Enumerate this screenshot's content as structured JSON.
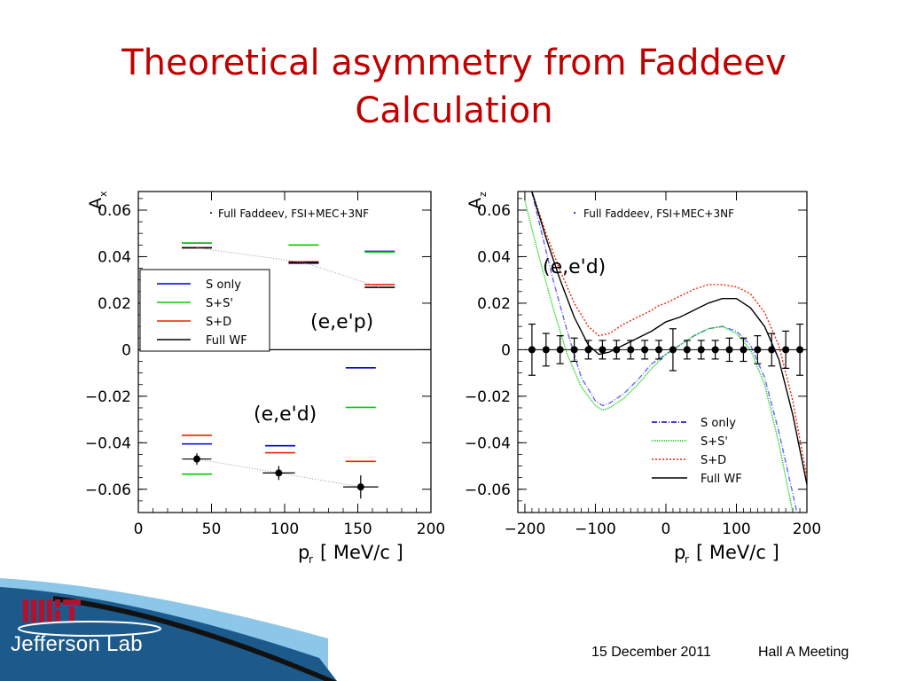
{
  "slide": {
    "title_line1": "Theoretical asymmetry from Faddeev",
    "title_line2": "Calculation",
    "footer_date": "15 December 2011",
    "footer_meeting": "Hall A Meeting",
    "logo_lab": "Jefferson Lab",
    "colors": {
      "title": "#c00000",
      "band_dark": "#1d5a8c",
      "band_light": "#6fb4de"
    }
  },
  "chart_data": [
    {
      "type": "scatter",
      "ylabel": "A",
      "ylabel_sub": "x",
      "xlabel": "p",
      "xlabel_sub": "r",
      "xlabel_unit": "[ MeV/c ]",
      "xlim": [
        0,
        200
      ],
      "ylim": [
        -0.07,
        0.068
      ],
      "xticks": [
        0,
        50,
        100,
        150,
        200
      ],
      "yticks": [
        0.06,
        0.04,
        0.02,
        0,
        -0.02,
        -0.04,
        -0.06
      ],
      "ytick_labels": [
        "0.06",
        "0.04",
        "0.02",
        "0",
        "−0.02",
        "−0.04",
        "−0.06"
      ],
      "header_legend": "Full Faddeev, FSI+MEC+3NF",
      "legend": [
        "S only",
        "S+S'",
        "S+D",
        "Full WF"
      ],
      "legend_colors": [
        "#0000cc",
        "#00cc00",
        "#ee2200",
        "#000000"
      ],
      "annotations": [
        "(e,e'p)",
        "(e,e'd)"
      ],
      "bins": [
        {
          "x": 40,
          "s_only": 0.0458,
          "s_sprime": 0.0458,
          "s_d": 0.0438,
          "full": 0.0438
        },
        {
          "x": 113,
          "s_only": 0.0372,
          "s_sprime": 0.045,
          "s_d": 0.0378,
          "full": 0.0375
        },
        {
          "x": 165,
          "s_only": 0.0423,
          "s_sprime": 0.042,
          "s_d": 0.028,
          "full": 0.0268
        },
        {
          "x": 40,
          "s_only": -0.0405,
          "s_sprime": -0.0535,
          "s_d": -0.0368,
          "full": null
        },
        {
          "x": 97,
          "s_only": -0.0413,
          "s_sprime": null,
          "s_d": -0.0443,
          "full": null
        },
        {
          "x": 152,
          "s_only": -0.0078,
          "s_sprime": -0.0248,
          "s_d": -0.048,
          "full": null
        }
      ],
      "data_points": [
        {
          "x": 40,
          "y": -0.047,
          "yerr": 0.0025,
          "xerr": 10
        },
        {
          "x": 96,
          "y": -0.053,
          "yerr": 0.003,
          "xerr": 11
        },
        {
          "x": 152,
          "y": -0.059,
          "yerr": 0.005,
          "xerr": 12
        }
      ]
    },
    {
      "type": "line",
      "ylabel": "A",
      "ylabel_sub": "z",
      "xlabel": "p",
      "xlabel_sub": "r",
      "xlabel_unit": "[ MeV/c ]",
      "xlim": [
        -210,
        200
      ],
      "ylim": [
        -0.07,
        0.068
      ],
      "xticks": [
        -200,
        -100,
        0,
        100,
        200
      ],
      "xtick_labels": [
        "−200",
        "−100",
        "0",
        "100",
        "200"
      ],
      "yticks": [
        0.06,
        0.04,
        0.02,
        0,
        -0.02,
        -0.04,
        -0.06
      ],
      "ytick_labels": [
        "0.06",
        "0.04",
        "0.02",
        "0",
        "−0.02",
        "−0.04",
        "−0.06"
      ],
      "header_legend": "Full Faddeev, FSI+MEC+3NF",
      "legend": [
        "S only",
        "S+S'",
        "S+D",
        "Full WF"
      ],
      "legend_colors": [
        "#0000cc",
        "#00cc00",
        "#ee2200",
        "#000000"
      ],
      "annotations": [
        "(e,e'd)"
      ],
      "series": [
        {
          "name": "S only",
          "color": "#6666ff",
          "x": [
            -200,
            -180,
            -160,
            -140,
            -120,
            -100,
            -90,
            -80,
            -60,
            -40,
            -20,
            -10,
            0,
            20,
            40,
            60,
            80,
            100,
            120,
            140,
            160,
            180,
            200
          ],
          "y": [
            0.08,
            0.055,
            0.03,
            0.008,
            -0.012,
            -0.022,
            -0.024,
            -0.023,
            -0.019,
            -0.013,
            -0.006,
            -0.004,
            -0.002,
            0.002,
            0.006,
            0.009,
            0.01,
            0.008,
            0.002,
            -0.012,
            -0.035,
            -0.062,
            -0.09
          ]
        },
        {
          "name": "S+S'",
          "color": "#00cc00",
          "x": [
            -200,
            -180,
            -160,
            -140,
            -120,
            -100,
            -90,
            -80,
            -60,
            -40,
            -20,
            -10,
            0,
            20,
            40,
            60,
            80,
            100,
            120,
            140,
            160,
            180,
            200
          ],
          "y": [
            0.064,
            0.04,
            0.018,
            -0.002,
            -0.016,
            -0.024,
            -0.026,
            -0.025,
            -0.021,
            -0.015,
            -0.008,
            -0.005,
            -0.002,
            0.002,
            0.006,
            0.009,
            0.01,
            0.007,
            0.0,
            -0.015,
            -0.04,
            -0.07,
            -0.1
          ]
        },
        {
          "name": "S+D",
          "color": "#ee2200",
          "x": [
            -190,
            -170,
            -150,
            -130,
            -110,
            -95,
            -80,
            -60,
            -40,
            -20,
            -10,
            0,
            20,
            40,
            60,
            80,
            100,
            120,
            140,
            160,
            180,
            200
          ],
          "y": [
            0.068,
            0.05,
            0.034,
            0.02,
            0.01,
            0.006,
            0.007,
            0.011,
            0.014,
            0.017,
            0.019,
            0.02,
            0.023,
            0.026,
            0.028,
            0.028,
            0.027,
            0.024,
            0.016,
            0.002,
            -0.022,
            -0.055
          ]
        },
        {
          "name": "Full WF",
          "color": "#000000",
          "x": [
            -190,
            -170,
            -150,
            -130,
            -110,
            -95,
            -80,
            -60,
            -40,
            -20,
            -10,
            0,
            20,
            40,
            60,
            80,
            100,
            120,
            140,
            160,
            180,
            200
          ],
          "y": [
            0.068,
            0.048,
            0.03,
            0.014,
            0.002,
            -0.002,
            -0.001,
            0.002,
            0.005,
            0.008,
            0.01,
            0.012,
            0.014,
            0.017,
            0.02,
            0.022,
            0.022,
            0.018,
            0.01,
            -0.004,
            -0.028,
            -0.058
          ]
        }
      ],
      "data_points": {
        "x": [
          -190,
          -170,
          -150,
          -130,
          -110,
          -90,
          -70,
          -50,
          -30,
          -10,
          10,
          30,
          50,
          70,
          90,
          110,
          130,
          150,
          170,
          190
        ],
        "y": [
          0,
          0,
          0,
          0,
          0,
          0,
          0,
          0,
          0,
          0,
          0,
          0,
          0,
          0,
          0,
          0,
          0,
          0,
          0,
          0
        ],
        "yerr": [
          0.011,
          0.007,
          0.006,
          0.005,
          0.004,
          0.004,
          0.004,
          0.004,
          0.004,
          0.004,
          0.009,
          0.004,
          0.004,
          0.004,
          0.005,
          0.005,
          0.006,
          0.007,
          0.008,
          0.011
        ]
      }
    }
  ]
}
